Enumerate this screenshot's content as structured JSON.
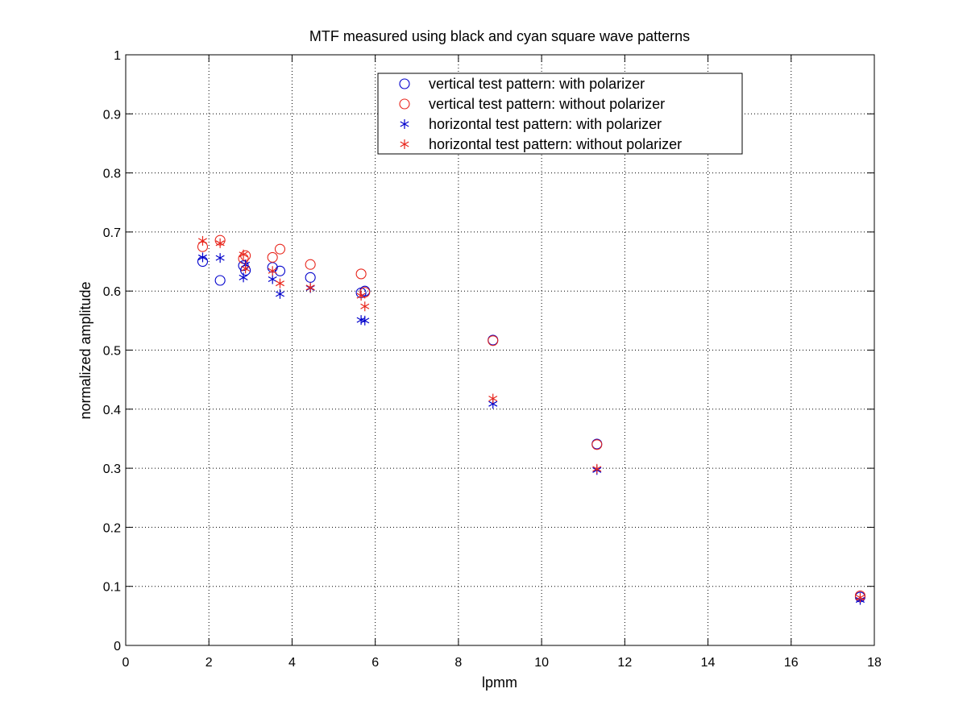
{
  "chart_data": {
    "type": "scatter",
    "title": "MTF measured using black and cyan square wave patterns",
    "xlabel": "lpmm",
    "ylabel": "normalized amplitude",
    "xlim": [
      0,
      18
    ],
    "ylim": [
      0,
      1
    ],
    "xticks": [
      0,
      2,
      4,
      6,
      8,
      10,
      12,
      14,
      16,
      18
    ],
    "yticks": [
      0,
      0.1,
      0.2,
      0.3,
      0.4,
      0.5,
      0.6,
      0.7,
      0.8,
      0.9,
      1
    ],
    "xtick_labels": [
      "0",
      "2",
      "4",
      "6",
      "8",
      "10",
      "12",
      "14",
      "16",
      "18"
    ],
    "ytick_labels": [
      "0",
      "0.1",
      "0.2",
      "0.3",
      "0.4",
      "0.5",
      "0.6",
      "0.7",
      "0.8",
      "0.9",
      "1"
    ],
    "grid": true,
    "legend_position": "top-right",
    "series": [
      {
        "name": "vertical test pattern: with polarizer",
        "marker": "circle",
        "color": "#0000cc",
        "x": [
          1.85,
          2.27,
          2.83,
          2.88,
          3.53,
          3.71,
          4.44,
          5.66,
          5.75,
          8.83,
          11.33,
          17.66
        ],
        "y": [
          0.65,
          0.618,
          0.643,
          0.635,
          0.64,
          0.634,
          0.623,
          0.597,
          0.6,
          0.517,
          0.341,
          0.082
        ]
      },
      {
        "name": "vertical test pattern: without polarizer",
        "marker": "circle",
        "color": "#e8261c",
        "x": [
          1.85,
          2.27,
          2.83,
          2.88,
          3.53,
          3.71,
          4.44,
          5.66,
          5.75,
          8.83,
          11.33,
          17.66
        ],
        "y": [
          0.675,
          0.686,
          0.655,
          0.66,
          0.657,
          0.671,
          0.645,
          0.629,
          0.598,
          0.516,
          0.34,
          0.084
        ]
      },
      {
        "name": "horizontal test pattern: with polarizer",
        "marker": "star",
        "color": "#0000cc",
        "x": [
          1.85,
          2.27,
          2.83,
          2.88,
          3.53,
          3.71,
          4.44,
          5.66,
          5.75,
          8.83,
          11.33,
          17.66
        ],
        "y": [
          0.657,
          0.656,
          0.623,
          0.645,
          0.62,
          0.595,
          0.605,
          0.551,
          0.55,
          0.409,
          0.297,
          0.077
        ]
      },
      {
        "name": "horizontal test pattern: without polarizer",
        "marker": "star",
        "color": "#e8261c",
        "x": [
          1.85,
          2.27,
          2.83,
          2.88,
          3.53,
          3.71,
          4.44,
          5.66,
          5.75,
          8.83,
          11.33,
          17.66
        ],
        "y": [
          0.685,
          0.681,
          0.662,
          0.638,
          0.634,
          0.613,
          0.606,
          0.592,
          0.574,
          0.418,
          0.299,
          0.081
        ]
      }
    ]
  }
}
